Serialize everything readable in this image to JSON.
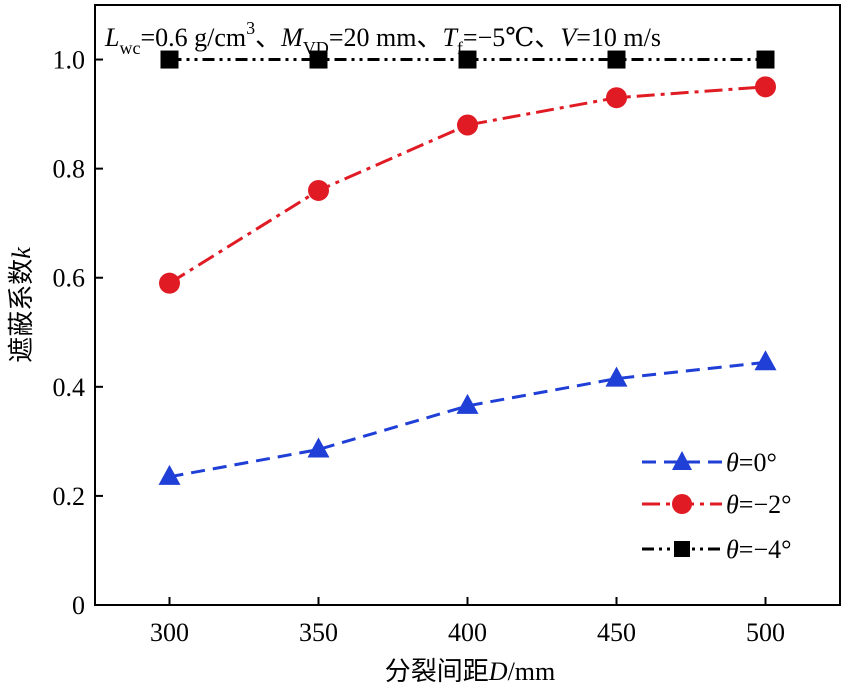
{
  "chart_data": {
    "type": "line",
    "annotation": {
      "L_sym": "L",
      "L_sub": "wc",
      "L_val": "=0.6 g/cm",
      "L_sup": "3",
      "sep1": "、",
      "M_sym": "M",
      "M_sub": "VD",
      "M_val": "=20 mm",
      "sep2": "、",
      "T_sym": "T",
      "T_sub": "f",
      "T_val": "=−5℃",
      "sep3": "、",
      "V_sym": "V",
      "V_val": "=10 m/s"
    },
    "xlabel": {
      "prefix": "分裂间距",
      "var": "D",
      "unit": "/mm"
    },
    "ylabel": {
      "prefix": "遮蔽系数",
      "var": "k"
    },
    "x": [
      300,
      350,
      400,
      450,
      500
    ],
    "xlim": [
      275,
      525
    ],
    "ylim": [
      0,
      1.1
    ],
    "xticks": [
      300,
      350,
      400,
      450,
      500
    ],
    "yticks": [
      0,
      0.2,
      0.4,
      0.6,
      0.8,
      1.0
    ],
    "ytick_labels": [
      "0",
      "0.2",
      "0.4",
      "0.6",
      "0.8",
      "1.0"
    ],
    "legend_position": "bottom-right",
    "series": [
      {
        "name": "θ=0°",
        "legend_sym": "θ",
        "legend_val": "=0°",
        "marker": "triangle",
        "line_style": "dashed",
        "color": "#1f3fd6",
        "values": [
          0.235,
          0.285,
          0.365,
          0.415,
          0.445
        ]
      },
      {
        "name": "θ=−2°",
        "legend_sym": "θ",
        "legend_val": "=−2°",
        "marker": "circle",
        "line_style": "dash-dot",
        "color": "#e01b24",
        "values": [
          0.59,
          0.76,
          0.88,
          0.93,
          0.95
        ]
      },
      {
        "name": "θ=−4°",
        "legend_sym": "θ",
        "legend_val": "=−4°",
        "marker": "square",
        "line_style": "dash-dot-dot",
        "color": "#000000",
        "values": [
          1.0,
          1.0,
          1.0,
          1.0,
          1.0
        ]
      }
    ]
  }
}
